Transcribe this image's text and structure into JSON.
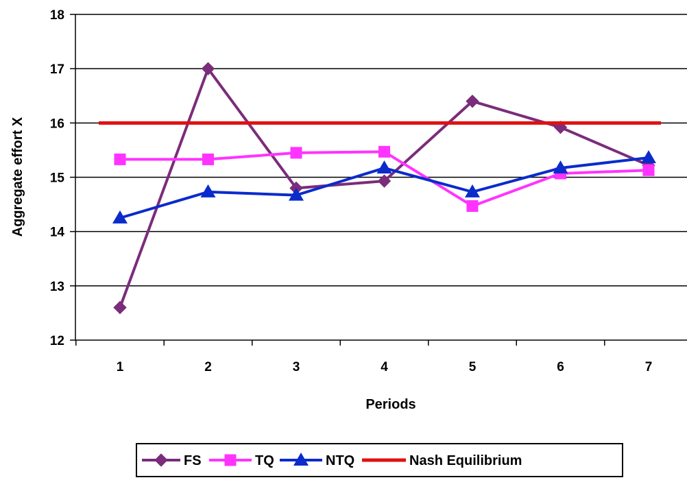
{
  "chart_data": {
    "type": "line",
    "title": "",
    "xlabel": "Periods",
    "ylabel": "Aggregate effort X",
    "x": [
      1,
      2,
      3,
      4,
      5,
      6,
      7
    ],
    "ylim": [
      12,
      18
    ],
    "yticks": [
      12,
      13,
      14,
      15,
      16,
      17,
      18
    ],
    "grid": "horizontal",
    "legend_position": "bottom",
    "series": [
      {
        "name": "FS",
        "color": "#7B2C7B",
        "marker": "diamond",
        "values": [
          12.6,
          17.0,
          14.8,
          14.93,
          16.4,
          15.92,
          15.22
        ]
      },
      {
        "name": "TQ",
        "color": "#FF33FF",
        "marker": "square",
        "values": [
          15.33,
          15.33,
          15.45,
          15.47,
          14.47,
          15.07,
          15.13
        ]
      },
      {
        "name": "NTQ",
        "color": "#0B2BCC",
        "marker": "triangle",
        "values": [
          14.25,
          14.73,
          14.67,
          15.17,
          14.73,
          15.17,
          15.36
        ]
      },
      {
        "name": "Nash Equilibrium",
        "color": "#E01010",
        "marker": "none",
        "values": [
          16,
          16,
          16,
          16,
          16,
          16,
          16
        ]
      }
    ]
  }
}
